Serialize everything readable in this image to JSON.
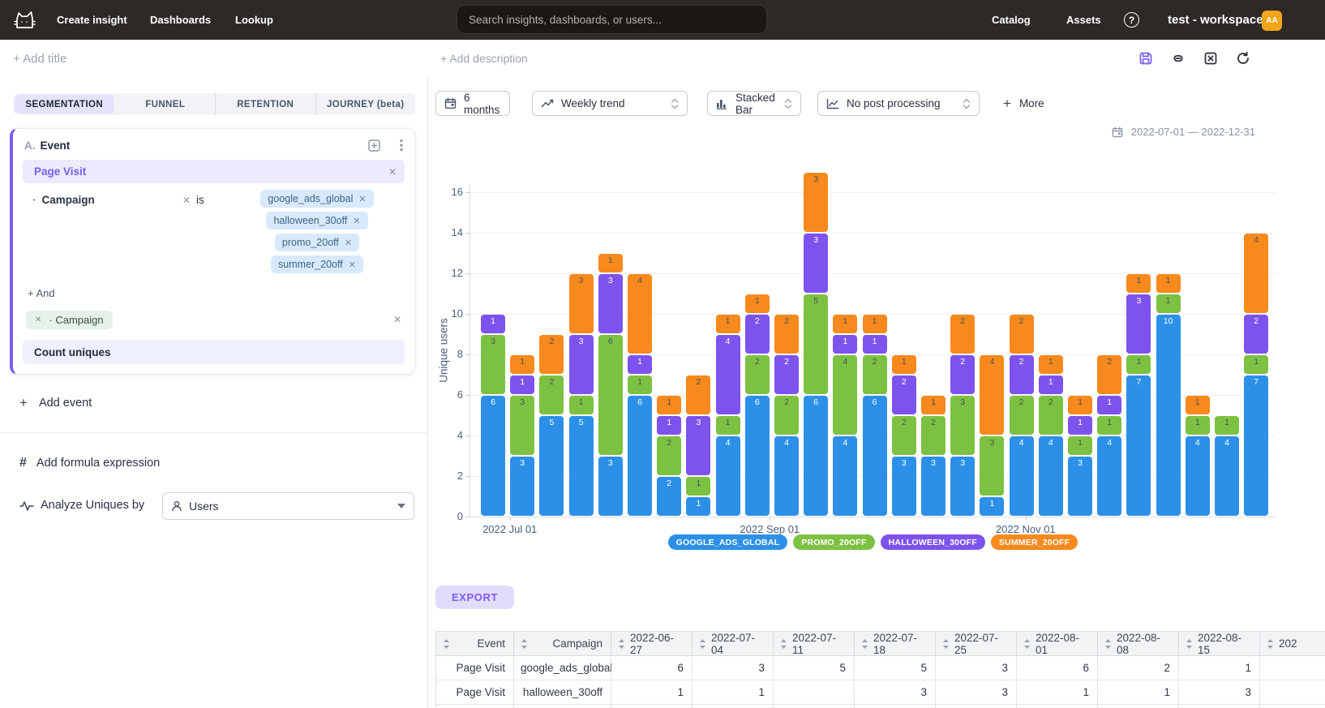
{
  "topbar": {
    "nav": [
      "Create insight",
      "Dashboards",
      "Lookup"
    ],
    "search_placeholder": "Search insights, dashboards, or users...",
    "secondary_nav": [
      "Catalog",
      "Assets"
    ],
    "help_glyph": "?",
    "workspace_name": "test - workspace",
    "avatar_initials": "AA"
  },
  "header": {
    "add_title": "+ Add title",
    "add_description": "+ Add description"
  },
  "left_panel": {
    "tabs": [
      "SEGMENTATION",
      "FUNNEL",
      "RETENTION",
      "JOURNEY (beta)"
    ],
    "active_tab_index": 0,
    "event_card": {
      "index": "A.",
      "type_label": "Event",
      "event_name": "Page Visit",
      "filter": {
        "bullet": "·",
        "property": "Campaign",
        "operator": "is",
        "values": [
          "google_ads_global",
          "halloween_30off",
          "promo_20off",
          "summer_20off"
        ]
      },
      "and_label": "+ And",
      "breakdown": {
        "bullet": "·",
        "property": "Campaign"
      },
      "aggregation": "Count uniques"
    },
    "add_event_label": "Add event",
    "add_formula_label": "Add formula expression",
    "analyze": {
      "label": "Analyze Uniques by",
      "value": "Users"
    }
  },
  "controls": {
    "time_range": "6 months",
    "trend": "Weekly trend",
    "chart_type": "Stacked Bar",
    "post_processing": "No post processing",
    "more": "More"
  },
  "chart_data": {
    "type": "bar",
    "stacked": true,
    "ylabel": "Unique users",
    "ylim": [
      0,
      16
    ],
    "y_ticks": [
      0,
      2,
      4,
      6,
      8,
      10,
      12,
      14,
      16
    ],
    "grid": true,
    "legend_position": "bottom",
    "date_range": "2022-07-01 — 2022-12-31",
    "x": [
      "2022-06-27",
      "2022-07-04",
      "2022-07-11",
      "2022-07-18",
      "2022-07-25",
      "2022-08-01",
      "2022-08-08",
      "2022-08-15",
      "2022-08-22",
      "2022-08-29",
      "2022-09-05",
      "2022-09-12",
      "2022-09-19",
      "2022-09-26",
      "2022-10-03",
      "2022-10-10",
      "2022-10-17",
      "2022-10-24",
      "2022-10-31",
      "2022-11-07",
      "2022-11-14",
      "2022-11-21",
      "2022-11-28",
      "2022-12-05",
      "2022-12-12",
      "2022-12-19",
      "2022-12-26"
    ],
    "x_axis_labels": [
      {
        "label": "2022 Jul 01",
        "date": "2022-07-01"
      },
      {
        "label": "2022 Sep 01",
        "date": "2022-09-01"
      },
      {
        "label": "2022 Nov 01",
        "date": "2022-11-01"
      }
    ],
    "series": [
      {
        "name": "GOOGLE_ADS_GLOBAL",
        "color": "#2d90e8",
        "label_color": "#ffffff",
        "values": [
          6,
          3,
          5,
          5,
          3,
          6,
          2,
          1,
          4,
          6,
          4,
          6,
          4,
          6,
          3,
          3,
          3,
          1,
          4,
          4,
          3,
          4,
          7,
          10,
          4,
          4,
          7
        ]
      },
      {
        "name": "PROMO_20OFF",
        "color": "#7dc142",
        "label_color": "#44515b",
        "values": [
          3,
          3,
          2,
          1,
          6,
          1,
          2,
          1,
          1,
          2,
          2,
          5,
          4,
          2,
          2,
          2,
          3,
          3,
          2,
          2,
          1,
          1,
          1,
          1,
          1,
          1,
          1
        ]
      },
      {
        "name": "HALLOWEEN_30OFF",
        "color": "#7d53ee",
        "label_color": "#ffffff",
        "values": [
          1,
          1,
          0,
          3,
          3,
          1,
          1,
          3,
          4,
          2,
          2,
          3,
          1,
          1,
          2,
          0,
          2,
          0,
          2,
          1,
          1,
          1,
          3,
          0,
          0,
          0,
          2
        ]
      },
      {
        "name": "SUMMER_20OFF",
        "color": "#f8891c",
        "label_color": "#44515b",
        "values": [
          0,
          1,
          2,
          3,
          1,
          4,
          1,
          2,
          1,
          1,
          2,
          3,
          1,
          1,
          1,
          1,
          2,
          4,
          2,
          1,
          1,
          2,
          1,
          1,
          1,
          0,
          4
        ]
      }
    ]
  },
  "export_label": "EXPORT",
  "table": {
    "columns": [
      "Event",
      "Campaign",
      "2022-06-27",
      "2022-07-04",
      "2022-07-11",
      "2022-07-18",
      "2022-07-25",
      "2022-08-01",
      "2022-08-08",
      "2022-08-15",
      "202"
    ],
    "rows": [
      [
        "Page Visit",
        "google_ads_global",
        "6",
        "3",
        "5",
        "5",
        "3",
        "6",
        "2",
        "1",
        ""
      ],
      [
        "Page Visit",
        "halloween_30off",
        "1",
        "1",
        "",
        "3",
        "3",
        "1",
        "1",
        "3",
        ""
      ]
    ]
  }
}
